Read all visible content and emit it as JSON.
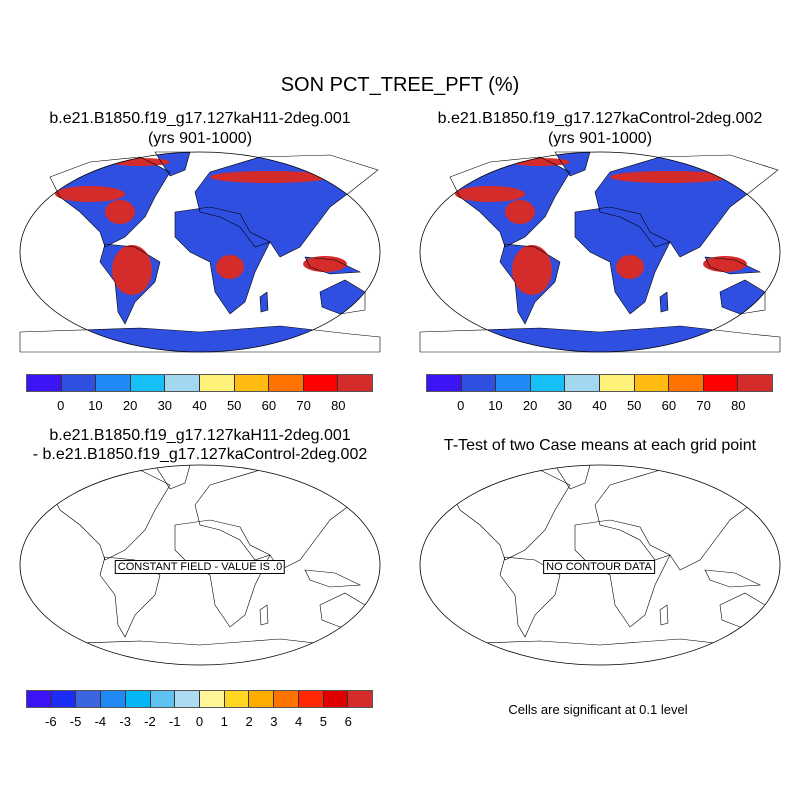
{
  "title": "SON PCT_TREE_PFT (%)",
  "panels": [
    {
      "title_line1": "b.e21.B1850.f19_g17.127kaH11-2deg.001",
      "title_line2": "(yrs 901-1000)"
    },
    {
      "title_line1": "b.e21.B1850.f19_g17.127kaControl-2deg.002",
      "title_line2": "(yrs 901-1000)"
    },
    {
      "title_line1": "b.e21.B1850.f19_g17.127kaH11-2deg.001",
      "title_line2": "- b.e21.B1850.f19_g17.127kaControl-2deg.002",
      "annotation": "CONSTANT FIELD - VALUE IS .0"
    },
    {
      "title_line1": "T-Test of two Case means at each grid point",
      "annotation": "NO CONTOUR DATA",
      "footnote": "Cells are significant at 0.1 level"
    }
  ],
  "colorbar_main": {
    "labels": [
      "0",
      "10",
      "20",
      "30",
      "40",
      "50",
      "60",
      "70",
      "80"
    ],
    "colors": [
      "#3c14f5",
      "#2f4fe0",
      "#2189f5",
      "#16bff7",
      "#a3d7f0",
      "#fff27a",
      "#ffbb12",
      "#ff7400",
      "#ff0000",
      "#d42b2b"
    ]
  },
  "colorbar_diff": {
    "labels": [
      "-6",
      "-5",
      "-4",
      "-3",
      "-2",
      "-1",
      "0",
      "1",
      "2",
      "3",
      "4",
      "5",
      "6"
    ],
    "colors": [
      "#3c14f5",
      "#1a2cf5",
      "#3c66e0",
      "#2189f5",
      "#05b6f7",
      "#5fc3f2",
      "#addcf2",
      "#fff69a",
      "#ffd620",
      "#ffab00",
      "#ff7400",
      "#ff2800",
      "#e00000",
      "#d42b2b"
    ]
  },
  "map_colors": {
    "land_low": "#2f4fe0",
    "land_high": "#d42b2b",
    "mid": "#ff7400",
    "yellow": "#fff27a"
  }
}
